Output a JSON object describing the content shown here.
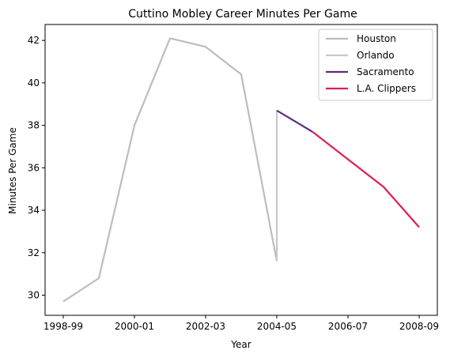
{
  "chart_data": {
    "type": "line",
    "title": "Cuttino Mobley Career Minutes Per Game",
    "xlabel": "Year",
    "ylabel": "Minutes Per Game",
    "categories": [
      "1998-99",
      "1999-00",
      "2000-01",
      "2001-02",
      "2002-03",
      "2003-04",
      "2004-05",
      "2005-06",
      "2006-07",
      "2007-08",
      "2008-09"
    ],
    "xtick_labels": [
      "1998-99",
      "2000-01",
      "2002-03",
      "2004-05",
      "2006-07",
      "2008-09"
    ],
    "yticks": [
      30,
      32,
      34,
      36,
      38,
      40,
      42
    ],
    "ylim": [
      29.05,
      42.75
    ],
    "grid": false,
    "legend_position": "top-right",
    "series": [
      {
        "name": "Houston",
        "color": "#bdbdbd",
        "x": [
          "1998-99",
          "1999-00",
          "2000-01",
          "2001-02",
          "2002-03",
          "2003-04",
          "2004-05"
        ],
        "values": [
          29.7,
          30.8,
          38.0,
          42.1,
          41.7,
          40.4,
          31.6
        ]
      },
      {
        "name": "Orlando",
        "color": "#c5c8cc",
        "x": [
          "2004-05",
          "2004-05"
        ],
        "values": [
          31.6,
          38.7
        ]
      },
      {
        "name": "Sacramento",
        "color": "#5b2c83",
        "x": [
          "2004-05",
          "2005-06"
        ],
        "values": [
          38.7,
          37.7
        ]
      },
      {
        "name": "L.A. Clippers",
        "color": "#e01e4f",
        "x": [
          "2005-06",
          "2006-07",
          "2007-08",
          "2008-09"
        ],
        "values": [
          37.7,
          36.4,
          35.1,
          33.2
        ]
      }
    ]
  }
}
